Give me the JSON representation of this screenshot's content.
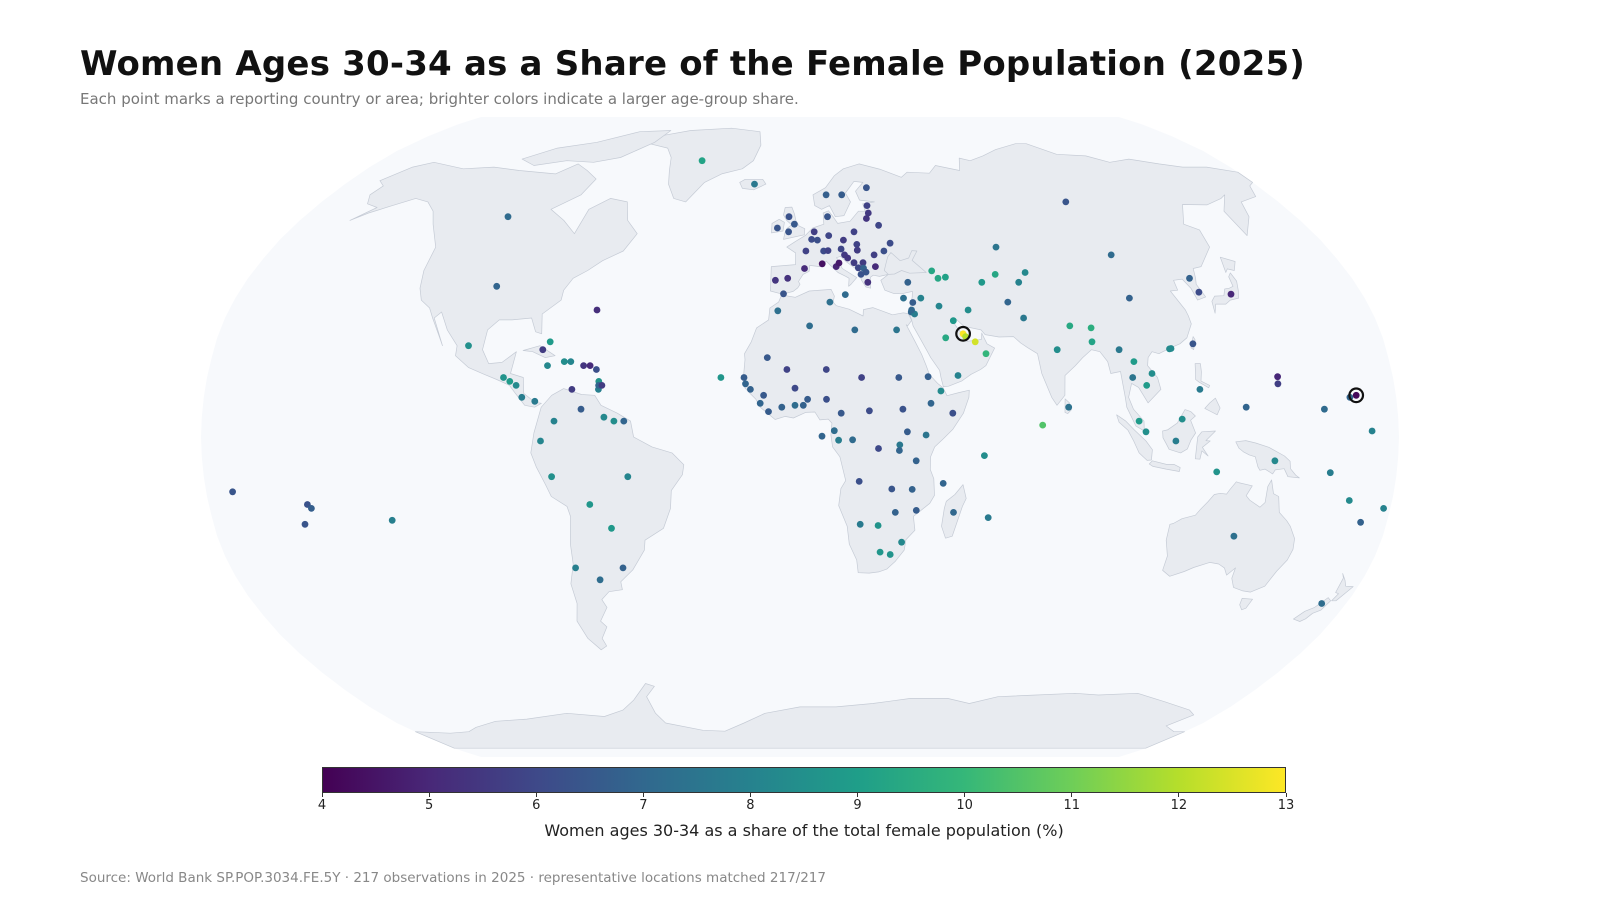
{
  "title": "Women Ages 30-34 as a Share of the Female Population (2025)",
  "subtitle": "Each point marks a reporting country or area; brighter colors indicate a larger age-group share.",
  "source": "Source: World Bank SP.POP.3034.FE.5Y · 217 observations in 2025 · representative locations matched 217/217",
  "colors": {
    "ocean": "#f7f9fc",
    "land": "#e8ebf0",
    "land_stroke": "#c5cbd5",
    "highlight_ring": "#111111"
  },
  "colorbar": {
    "title": "Women ages 30-34 as a share of the total female population (%)",
    "min": 4,
    "max": 13,
    "ticks": [
      "4",
      "5",
      "6",
      "7",
      "8",
      "9",
      "10",
      "11",
      "12",
      "13"
    ],
    "colormap": "viridis"
  },
  "chart_data": {
    "type": "scatter",
    "projection": "robinson",
    "value_unit": "%",
    "points": [
      {
        "lon": -42,
        "lat": 72,
        "v": 9.2
      },
      {
        "lon": -18,
        "lat": 65,
        "v": 7.6
      },
      {
        "lon": -106,
        "lat": 56,
        "v": 7.1
      },
      {
        "lon": -98,
        "lat": 38,
        "v": 6.9
      },
      {
        "lon": -64,
        "lat": 32,
        "v": 5.2
      },
      {
        "lon": -102,
        "lat": 23,
        "v": 8.5
      },
      {
        "lon": -90,
        "lat": 15,
        "v": 8.6
      },
      {
        "lon": -88,
        "lat": 14,
        "v": 8.9
      },
      {
        "lon": -86,
        "lat": 13,
        "v": 8.3
      },
      {
        "lon": -84,
        "lat": 10,
        "v": 7.8
      },
      {
        "lon": -80,
        "lat": 9,
        "v": 7.7
      },
      {
        "lon": -77,
        "lat": 18,
        "v": 8.2
      },
      {
        "lon": -77,
        "lat": 24,
        "v": 8.9
      },
      {
        "lon": -72,
        "lat": 19,
        "v": 8.4
      },
      {
        "lon": -70,
        "lat": 19,
        "v": 8.1
      },
      {
        "lon": -79,
        "lat": 22,
        "v": 5.6
      },
      {
        "lon": -66,
        "lat": 18,
        "v": 5.4
      },
      {
        "lon": -64,
        "lat": 18,
        "v": 5.1
      },
      {
        "lon": -62,
        "lat": 17,
        "v": 6.2
      },
      {
        "lon": -61,
        "lat": 14,
        "v": 8.6
      },
      {
        "lon": -61,
        "lat": 12,
        "v": 7.9
      },
      {
        "lon": -61,
        "lat": 13,
        "v": 6.9
      },
      {
        "lon": -60,
        "lat": 13,
        "v": 5.6
      },
      {
        "lon": -69,
        "lat": 12,
        "v": 5.6
      },
      {
        "lon": -74,
        "lat": 4,
        "v": 8.0
      },
      {
        "lon": -66,
        "lat": 7,
        "v": 6.6
      },
      {
        "lon": -59,
        "lat": 5,
        "v": 8.2
      },
      {
        "lon": -56,
        "lat": 4,
        "v": 8.4
      },
      {
        "lon": -53,
        "lat": 4,
        "v": 6.9
      },
      {
        "lon": -78,
        "lat": -1,
        "v": 8.1
      },
      {
        "lon": -75,
        "lat": -10,
        "v": 8.5
      },
      {
        "lon": -52,
        "lat": -10,
        "v": 8.1
      },
      {
        "lon": -64,
        "lat": -17,
        "v": 8.7
      },
      {
        "lon": -58,
        "lat": -23,
        "v": 8.8
      },
      {
        "lon": -71,
        "lat": -33,
        "v": 7.9
      },
      {
        "lon": -64,
        "lat": -36,
        "v": 7.2
      },
      {
        "lon": -56,
        "lat": -33,
        "v": 6.8
      },
      {
        "lon": -150,
        "lat": -17,
        "v": 6.3
      },
      {
        "lon": -149,
        "lat": -18,
        "v": 6.7
      },
      {
        "lon": -152,
        "lat": -22,
        "v": 6.4
      },
      {
        "lon": -125,
        "lat": -21,
        "v": 7.9
      },
      {
        "lon": -8,
        "lat": 53,
        "v": 6.4
      },
      {
        "lon": -2,
        "lat": 54,
        "v": 6.5
      },
      {
        "lon": -4,
        "lat": 56,
        "v": 6.3
      },
      {
        "lon": -4,
        "lat": 52,
        "v": 6.4
      },
      {
        "lon": 2,
        "lat": 47,
        "v": 5.8
      },
      {
        "lon": 5,
        "lat": 52,
        "v": 5.7
      },
      {
        "lon": 4,
        "lat": 50,
        "v": 6.1
      },
      {
        "lon": 6,
        "lat": 49.8,
        "v": 6.2
      },
      {
        "lon": 10,
        "lat": 51,
        "v": 5.9
      },
      {
        "lon": 14,
        "lat": 47.5,
        "v": 5.9
      },
      {
        "lon": 8,
        "lat": 47,
        "v": 6.1
      },
      {
        "lon": 12,
        "lat": 43,
        "v": 4.9
      },
      {
        "lon": 13,
        "lat": 43.9,
        "v": 4.6
      },
      {
        "lon": 7.4,
        "lat": 43.7,
        "v": 4.4
      },
      {
        "lon": 1.5,
        "lat": 42.5,
        "v": 5.1
      },
      {
        "lon": -4,
        "lat": 40,
        "v": 5.3
      },
      {
        "lon": -8,
        "lat": 39.5,
        "v": 5.4
      },
      {
        "lon": -5.3,
        "lat": 36.1,
        "v": 6.4
      },
      {
        "lon": 14.5,
        "lat": 35.9,
        "v": 7.1
      },
      {
        "lon": 10,
        "lat": 56,
        "v": 6.4
      },
      {
        "lon": 9.5,
        "lat": 47.1,
        "v": 5.8
      },
      {
        "lon": 10,
        "lat": 62,
        "v": 6.7
      },
      {
        "lon": 16,
        "lat": 62,
        "v": 6.6
      },
      {
        "lon": 26,
        "lat": 64,
        "v": 6.4
      },
      {
        "lon": 25,
        "lat": 59,
        "v": 5.8
      },
      {
        "lon": 25,
        "lat": 57,
        "v": 5.5
      },
      {
        "lon": 24,
        "lat": 55.5,
        "v": 5.4
      },
      {
        "lon": 19,
        "lat": 52,
        "v": 5.8
      },
      {
        "lon": 15,
        "lat": 49.8,
        "v": 5.6
      },
      {
        "lon": 19.5,
        "lat": 48.7,
        "v": 5.8
      },
      {
        "lon": 19.5,
        "lat": 47.2,
        "v": 5.6
      },
      {
        "lon": 15,
        "lat": 46,
        "v": 5.5
      },
      {
        "lon": 16,
        "lat": 45.2,
        "v": 5.4
      },
      {
        "lon": 18,
        "lat": 44,
        "v": 5.6
      },
      {
        "lon": 21,
        "lat": 44,
        "v": 5.6
      },
      {
        "lon": 19.3,
        "lat": 42.7,
        "v": 5.9
      },
      {
        "lon": 21,
        "lat": 42.6,
        "v": 6.8
      },
      {
        "lon": 20,
        "lat": 41,
        "v": 6.3
      },
      {
        "lon": 21.7,
        "lat": 41.6,
        "v": 6.4
      },
      {
        "lon": 22,
        "lat": 39,
        "v": 5.3
      },
      {
        "lon": 25,
        "lat": 43,
        "v": 5.1
      },
      {
        "lon": 25,
        "lat": 46,
        "v": 5.7
      },
      {
        "lon": 28.5,
        "lat": 47,
        "v": 6.2
      },
      {
        "lon": 31,
        "lat": 49,
        "v": 6.1
      },
      {
        "lon": 28,
        "lat": 53.7,
        "v": 5.9
      },
      {
        "lon": 35,
        "lat": 39,
        "v": 6.8
      },
      {
        "lon": 33,
        "lat": 35,
        "v": 7.3
      },
      {
        "lon": 35.8,
        "lat": 33.9,
        "v": 6.6
      },
      {
        "lon": 38.5,
        "lat": 35,
        "v": 8.0
      },
      {
        "lon": 35,
        "lat": 31.5,
        "v": 6.9
      },
      {
        "lon": 36,
        "lat": 31,
        "v": 7.8
      },
      {
        "lon": 35.2,
        "lat": 32,
        "v": 7.0
      },
      {
        "lon": 44,
        "lat": 33,
        "v": 8.1
      },
      {
        "lon": 45,
        "lat": 25,
        "v": 9.4
      },
      {
        "lon": 47.9,
        "lat": 29.3,
        "v": 8.8
      },
      {
        "lon": 50.5,
        "lat": 26,
        "v": 13.0
      },
      {
        "lon": 51.2,
        "lat": 25.3,
        "v": 12.0
      },
      {
        "lon": 54,
        "lat": 24,
        "v": 12.4
      },
      {
        "lon": 57,
        "lat": 21,
        "v": 9.9
      },
      {
        "lon": 48,
        "lat": 15.5,
        "v": 8.0
      },
      {
        "lon": 43.4,
        "lat": 41.9,
        "v": 9.3
      },
      {
        "lon": 45,
        "lat": 40,
        "v": 9.3
      },
      {
        "lon": 47.5,
        "lat": 40.3,
        "v": 9.1
      },
      {
        "lon": 53,
        "lat": 32,
        "v": 8.4
      },
      {
        "lon": 59,
        "lat": 39,
        "v": 8.8
      },
      {
        "lon": 64,
        "lat": 41,
        "v": 9.3
      },
      {
        "lon": 67,
        "lat": 48,
        "v": 7.5
      },
      {
        "lon": 74,
        "lat": 41.5,
        "v": 8.2
      },
      {
        "lon": 71,
        "lat": 39,
        "v": 8.0
      },
      {
        "lon": 66,
        "lat": 34,
        "v": 6.9
      },
      {
        "lon": 70,
        "lat": 30,
        "v": 7.6
      },
      {
        "lon": 79,
        "lat": 22,
        "v": 8.4
      },
      {
        "lon": 84,
        "lat": 28,
        "v": 9.4
      },
      {
        "lon": 90.5,
        "lat": 27.5,
        "v": 9.6
      },
      {
        "lon": 90,
        "lat": 24,
        "v": 9.2
      },
      {
        "lon": 81,
        "lat": 7.5,
        "v": 7.4
      },
      {
        "lon": 73,
        "lat": 3,
        "v": 10.5
      },
      {
        "lon": 98,
        "lat": 22,
        "v": 7.6
      },
      {
        "lon": 101,
        "lat": 15,
        "v": 7.5
      },
      {
        "lon": 102,
        "lat": 19,
        "v": 8.9
      },
      {
        "lon": 105,
        "lat": 13,
        "v": 8.9
      },
      {
        "lon": 107,
        "lat": 16,
        "v": 8.4
      },
      {
        "lon": 102,
        "lat": 4,
        "v": 8.9
      },
      {
        "lon": 104,
        "lat": 1.3,
        "v": 8.5
      },
      {
        "lon": 115,
        "lat": 4.5,
        "v": 8.4
      },
      {
        "lon": 113,
        "lat": -1,
        "v": 7.8
      },
      {
        "lon": 121,
        "lat": 12,
        "v": 7.7
      },
      {
        "lon": 125.7,
        "lat": -8.8,
        "v": 8.6
      },
      {
        "lon": 143,
        "lat": -6,
        "v": 8.2
      },
      {
        "lon": 134,
        "lat": -25,
        "v": 7.3
      },
      {
        "lon": 172,
        "lat": -42,
        "v": 7.2
      },
      {
        "lon": 114,
        "lat": 22.3,
        "v": 8.3
      },
      {
        "lon": 113.5,
        "lat": 22.2,
        "v": 8.3
      },
      {
        "lon": 121,
        "lat": 23.5,
        "v": 6.4
      },
      {
        "lon": 105,
        "lat": 35,
        "v": 6.8
      },
      {
        "lon": 127,
        "lat": 40,
        "v": 6.8
      },
      {
        "lon": 128,
        "lat": 36.5,
        "v": 6.1
      },
      {
        "lon": 138,
        "lat": 36,
        "v": 5.0
      },
      {
        "lon": 105,
        "lat": 46,
        "v": 7.1
      },
      {
        "lon": 100,
        "lat": 60,
        "v": 6.4
      },
      {
        "lon": 134.5,
        "lat": 7.5,
        "v": 6.9
      },
      {
        "lon": 145,
        "lat": 15.2,
        "v": 5.0
      },
      {
        "lon": 144.8,
        "lat": 13.4,
        "v": 5.7
      },
      {
        "lon": 166,
        "lat": 10,
        "v": 6.9
      },
      {
        "lon": 168,
        "lat": 10.5,
        "v": 4.2
      },
      {
        "lon": 158,
        "lat": 7,
        "v": 7.1
      },
      {
        "lon": 172,
        "lat": 1.5,
        "v": 8.0
      },
      {
        "lon": 160,
        "lat": -9,
        "v": 7.8
      },
      {
        "lon": 167,
        "lat": -16,
        "v": 8.3
      },
      {
        "lon": 178,
        "lat": -18,
        "v": 8.0
      },
      {
        "lon": 172,
        "lat": -21.5,
        "v": 6.8
      },
      {
        "lon": -172,
        "lat": -13.8,
        "v": 6.4
      },
      {
        "lon": -17,
        "lat": 15,
        "v": 6.6
      },
      {
        "lon": -16.5,
        "lat": 13.4,
        "v": 6.9
      },
      {
        "lon": -15,
        "lat": 12,
        "v": 6.8
      },
      {
        "lon": -11,
        "lat": 10.5,
        "v": 6.5
      },
      {
        "lon": -12,
        "lat": 8.5,
        "v": 6.9
      },
      {
        "lon": -9.5,
        "lat": 6.4,
        "v": 6.6
      },
      {
        "lon": -5.5,
        "lat": 7.5,
        "v": 6.8
      },
      {
        "lon": -1.5,
        "lat": 8,
        "v": 7.2
      },
      {
        "lon": 1,
        "lat": 8,
        "v": 6.8
      },
      {
        "lon": 2.3,
        "lat": 9.5,
        "v": 6.6
      },
      {
        "lon": 8,
        "lat": 9.5,
        "v": 6.2
      },
      {
        "lon": -1.5,
        "lat": 12.3,
        "v": 6.0
      },
      {
        "lon": -4,
        "lat": 17,
        "v": 5.8
      },
      {
        "lon": 8,
        "lat": 17,
        "v": 5.9
      },
      {
        "lon": -10,
        "lat": 20,
        "v": 6.5
      },
      {
        "lon": -7,
        "lat": 31.8,
        "v": 7.3
      },
      {
        "lon": 3,
        "lat": 28,
        "v": 7.2
      },
      {
        "lon": 9.5,
        "lat": 34,
        "v": 7.3
      },
      {
        "lon": 17,
        "lat": 27,
        "v": 7.1
      },
      {
        "lon": 30,
        "lat": 27,
        "v": 7.5
      },
      {
        "lon": 30,
        "lat": 15,
        "v": 6.5
      },
      {
        "lon": 18.7,
        "lat": 15,
        "v": 5.8
      },
      {
        "lon": 20.9,
        "lat": 6.6,
        "v": 6.1
      },
      {
        "lon": 31,
        "lat": 7,
        "v": 6.3
      },
      {
        "lon": 38.9,
        "lat": 15.2,
        "v": 6.7
      },
      {
        "lon": 39.5,
        "lat": 8.5,
        "v": 6.9
      },
      {
        "lon": 42.6,
        "lat": 11.6,
        "v": 8.3
      },
      {
        "lon": 46,
        "lat": 6,
        "v": 6.2
      },
      {
        "lon": 37.9,
        "lat": 0.5,
        "v": 7.5
      },
      {
        "lon": 32.3,
        "lat": 1.3,
        "v": 6.6
      },
      {
        "lon": 30,
        "lat": -2,
        "v": 7.6
      },
      {
        "lon": 29.9,
        "lat": -3.4,
        "v": 6.9
      },
      {
        "lon": 35,
        "lat": -6,
        "v": 6.8
      },
      {
        "lon": 23.6,
        "lat": -2.9,
        "v": 6.0
      },
      {
        "lon": 15.8,
        "lat": -0.7,
        "v": 7.1
      },
      {
        "lon": 11.6,
        "lat": -0.8,
        "v": 7.8
      },
      {
        "lon": 10.3,
        "lat": 1.6,
        "v": 7.2
      },
      {
        "lon": 12.4,
        "lat": 6,
        "v": 6.5
      },
      {
        "lon": 6.6,
        "lat": 0.2,
        "v": 6.9
      },
      {
        "lon": 17.9,
        "lat": -11.2,
        "v": 6.2
      },
      {
        "lon": 27.8,
        "lat": -13.1,
        "v": 6.4
      },
      {
        "lon": 34,
        "lat": -13.2,
        "v": 6.8
      },
      {
        "lon": 35.5,
        "lat": -18.5,
        "v": 6.6
      },
      {
        "lon": 29.1,
        "lat": -19,
        "v": 6.8
      },
      {
        "lon": 24,
        "lat": -22.3,
        "v": 8.6
      },
      {
        "lon": 18.5,
        "lat": -22,
        "v": 7.7
      },
      {
        "lon": 25,
        "lat": -29,
        "v": 8.7
      },
      {
        "lon": 28.2,
        "lat": -29.6,
        "v": 8.6
      },
      {
        "lon": 31.5,
        "lat": -26.5,
        "v": 8.2
      },
      {
        "lon": 46.9,
        "lat": -19,
        "v": 7.0
      },
      {
        "lon": 43.3,
        "lat": -11.7,
        "v": 6.9
      },
      {
        "lon": 57.6,
        "lat": -20.3,
        "v": 7.7
      },
      {
        "lon": 55.5,
        "lat": -4.7,
        "v": 8.4
      },
      {
        "lon": -24,
        "lat": 15,
        "v": 8.7
      }
    ],
    "highlighted": [
      {
        "lon": 50.5,
        "lat": 26,
        "v": 13.0
      },
      {
        "lon": 168,
        "lat": 10.5,
        "v": 4.2
      }
    ]
  }
}
